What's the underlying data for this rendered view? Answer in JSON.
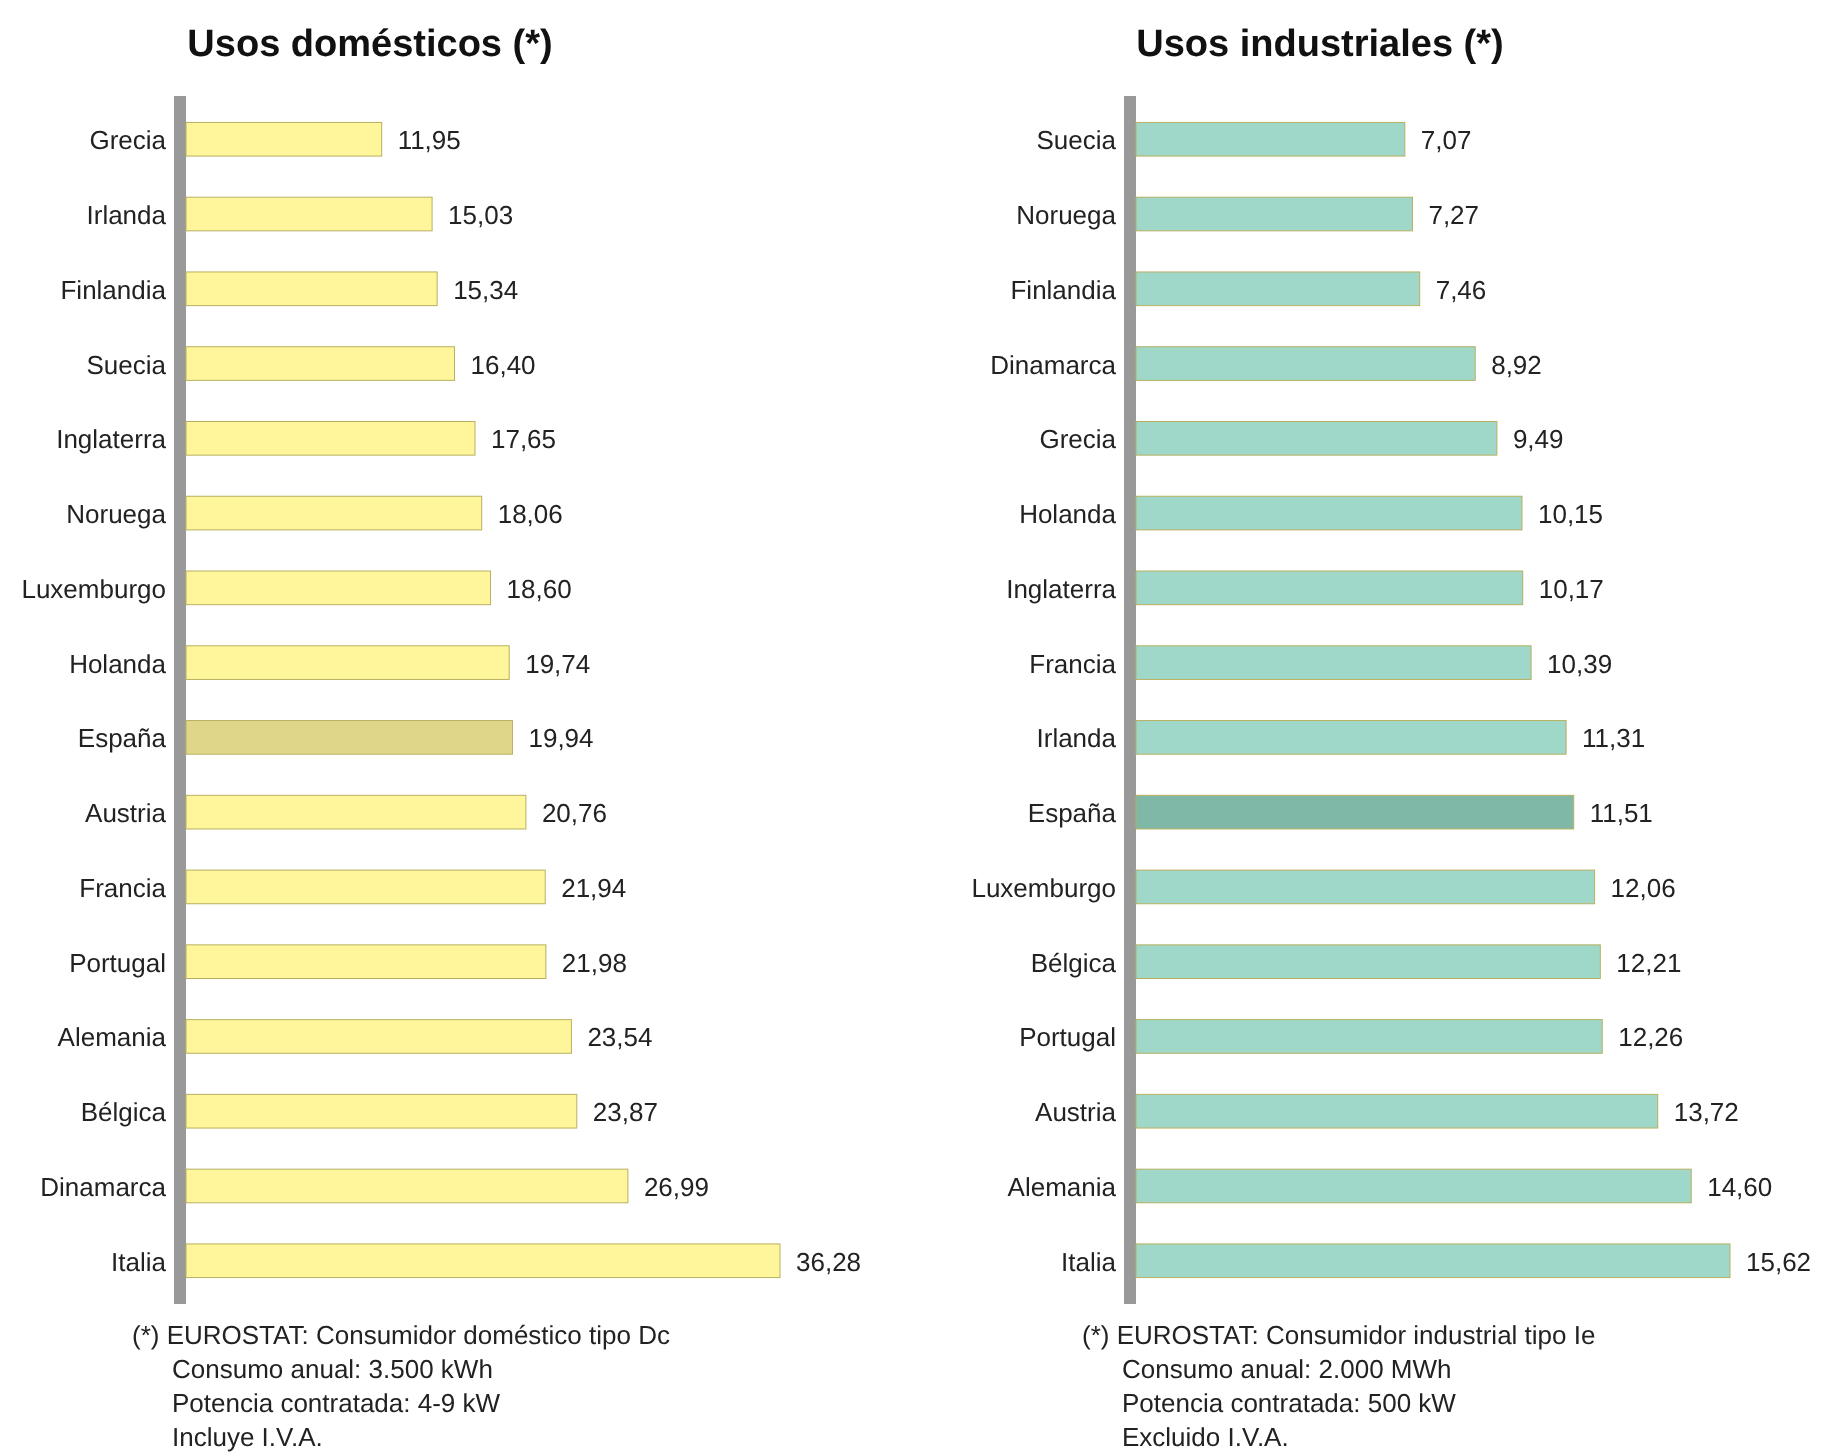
{
  "chart_data": [
    {
      "type": "bar",
      "orientation": "horizontal",
      "title": "Usos domésticos (*)",
      "categories": [
        "Grecia",
        "Irlanda",
        "Finlandia",
        "Suecia",
        "Inglaterra",
        "Noruega",
        "Luxemburgo",
        "Holanda",
        "España",
        "Austria",
        "Francia",
        "Portugal",
        "Alemania",
        "Bélgica",
        "Dinamarca",
        "Italia"
      ],
      "values": [
        11.95,
        15.03,
        15.34,
        16.4,
        17.65,
        18.06,
        18.6,
        19.74,
        19.94,
        20.76,
        21.94,
        21.98,
        23.54,
        23.87,
        26.99,
        36.28
      ],
      "value_labels": [
        "11,95",
        "15,03",
        "15,34",
        "16,40",
        "17,65",
        "18,06",
        "18,60",
        "19,74",
        "19,94",
        "20,76",
        "21,94",
        "21,98",
        "23,54",
        "23,87",
        "26,99",
        "36,28"
      ],
      "colors": [
        "#fff59a",
        "#fff59a",
        "#fff59a",
        "#fff59a",
        "#fff59a",
        "#fff59a",
        "#fff59a",
        "#fff59a",
        "#e0d68a",
        "#fff59a",
        "#fff59a",
        "#fff59a",
        "#fff59a",
        "#fff59a",
        "#fff59a",
        "#fff59a"
      ],
      "annotations": [
        "(*) EUROSTAT: Consumidor doméstico tipo Dc",
        "Consumo anual: 3.500 kWh",
        "Potencia contratada: 4-9 kW",
        "Incluye I.V.A."
      ]
    },
    {
      "type": "bar",
      "orientation": "horizontal",
      "title": "Usos industriales (*)",
      "categories": [
        "Suecia",
        "Noruega",
        "Finlandia",
        "Dinamarca",
        "Grecia",
        "Holanda",
        "Inglaterra",
        "Francia",
        "Irlanda",
        "España",
        "Luxemburgo",
        "Bélgica",
        "Portugal",
        "Austria",
        "Alemania",
        "Italia"
      ],
      "values": [
        7.07,
        7.27,
        7.46,
        8.92,
        9.49,
        10.15,
        10.17,
        10.39,
        11.31,
        11.51,
        12.06,
        12.21,
        12.26,
        13.72,
        14.6,
        15.62
      ],
      "value_labels": [
        "7,07",
        "7,27",
        "7,46",
        "8,92",
        "9,49",
        "10,15",
        "10,17",
        "10,39",
        "11,31",
        "11,51",
        "12,06",
        "12,21",
        "12,26",
        "13,72",
        "14,60",
        "15,62"
      ],
      "colors": [
        "#9fd8c8",
        "#9fd8c8",
        "#9fd8c8",
        "#9fd8c8",
        "#9fd8c8",
        "#9fd8c8",
        "#9fd8c8",
        "#9fd8c8",
        "#9fd8c8",
        "#80b8a8",
        "#9fd8c8",
        "#9fd8c8",
        "#9fd8c8",
        "#9fd8c8",
        "#9fd8c8",
        "#9fd8c8"
      ],
      "annotations": [
        "(*) EUROSTAT: Consumidor industrial tipo Ie",
        "Consumo anual: 2.000 MWh",
        "Potencia contratada: 500 kW",
        "Excluido I.V.A."
      ]
    }
  ]
}
